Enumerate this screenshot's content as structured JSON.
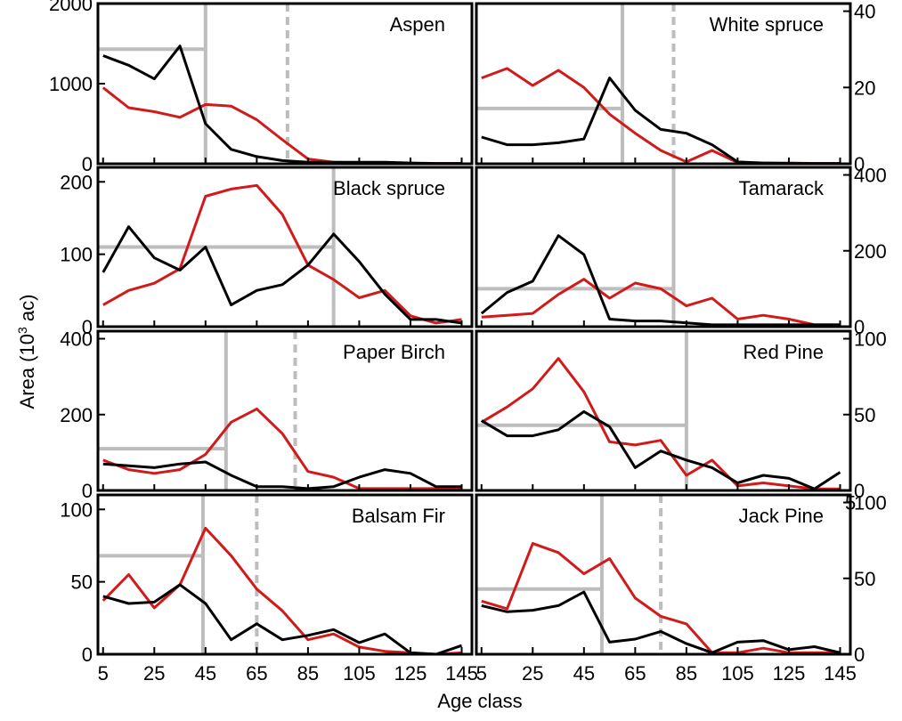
{
  "figure": {
    "ylabel_main": "Area (10",
    "ylabel_sup": "3",
    "ylabel_tail": " ac)",
    "xlabel": "Age class"
  },
  "colors": {
    "series_a": "#d11a1a",
    "series_b": "#000000",
    "reference": "#bdbdbd"
  },
  "chart_data": [
    {
      "type": "line",
      "title": "Aspen",
      "xlim": [
        3,
        149
      ],
      "ylim": [
        0,
        2000
      ],
      "yticks": [
        "0",
        "1000",
        "2000"
      ],
      "reference_lines": {
        "solid_x": 45,
        "dashed_x": 77,
        "horizontal_y": 1430
      },
      "x": [
        5,
        15,
        25,
        35,
        45,
        55,
        65,
        75,
        85,
        95,
        105,
        115,
        125,
        135,
        145
      ],
      "series": [
        {
          "color": "#d11a1a",
          "values": [
            950,
            700,
            650,
            580,
            740,
            720,
            550,
            300,
            60,
            20,
            10,
            10,
            5,
            5,
            5
          ]
        },
        {
          "color": "#000000",
          "values": [
            1350,
            1230,
            1060,
            1470,
            500,
            180,
            90,
            40,
            20,
            20,
            20,
            20,
            10,
            5,
            5
          ]
        }
      ]
    },
    {
      "type": "line",
      "title": "White spruce",
      "xlim": [
        3,
        149
      ],
      "ylim": [
        0,
        42
      ],
      "yticks": [
        "0",
        "20",
        "40"
      ],
      "reference_lines": {
        "solid_x": 60,
        "dashed_x": 80,
        "horizontal_y": 14.5
      },
      "x": [
        5,
        15,
        25,
        35,
        45,
        55,
        65,
        75,
        85,
        95,
        105,
        115,
        125,
        135,
        145
      ],
      "series": [
        {
          "color": "#d11a1a",
          "values": [
            22.5,
            25,
            20.5,
            24.5,
            20,
            13,
            8,
            3.5,
            0.5,
            3.5,
            0.3,
            0.2,
            0.2,
            0.1,
            0.1
          ]
        },
        {
          "color": "#000000",
          "values": [
            7,
            5,
            5,
            5.5,
            6.5,
            22.5,
            14,
            9,
            8,
            5,
            0.5,
            0.2,
            0.1,
            0.1,
            0.1
          ]
        }
      ]
    },
    {
      "type": "line",
      "title": "Black spruce",
      "xlim": [
        3,
        149
      ],
      "ylim": [
        0,
        220
      ],
      "yticks": [
        "0",
        "100",
        "200"
      ],
      "reference_lines": {
        "solid_x": 95,
        "dashed_x": null,
        "horizontal_y": 110
      },
      "x": [
        5,
        15,
        25,
        35,
        45,
        55,
        65,
        75,
        85,
        95,
        105,
        115,
        125,
        135,
        145
      ],
      "series": [
        {
          "color": "#d11a1a",
          "values": [
            30,
            50,
            60,
            80,
            180,
            190,
            195,
            155,
            85,
            65,
            40,
            50,
            15,
            5,
            10
          ]
        },
        {
          "color": "#000000",
          "values": [
            75,
            138,
            95,
            78,
            110,
            30,
            50,
            58,
            85,
            128,
            90,
            45,
            10,
            10,
            5
          ]
        }
      ]
    },
    {
      "type": "line",
      "title": "Tamarack",
      "xlim": [
        3,
        149
      ],
      "ylim": [
        0,
        420
      ],
      "yticks": [
        "0",
        "200",
        "400"
      ],
      "reference_lines": {
        "solid_x": 80,
        "dashed_x": null,
        "horizontal_y": 100
      },
      "x": [
        5,
        15,
        25,
        35,
        45,
        55,
        65,
        75,
        85,
        95,
        105,
        115,
        125,
        135,
        145
      ],
      "series": [
        {
          "color": "#d11a1a",
          "values": [
            25,
            30,
            35,
            85,
            125,
            75,
            115,
            100,
            55,
            75,
            20,
            30,
            20,
            5,
            5
          ]
        },
        {
          "color": "#000000",
          "values": [
            35,
            90,
            120,
            240,
            190,
            20,
            15,
            15,
            10,
            5,
            5,
            5,
            5,
            5,
            5
          ]
        }
      ]
    },
    {
      "type": "line",
      "title": "Paper Birch",
      "xlim": [
        3,
        149
      ],
      "ylim": [
        0,
        420
      ],
      "yticks": [
        "0",
        "200",
        "400"
      ],
      "reference_lines": {
        "solid_x": 53,
        "dashed_x": 80,
        "horizontal_y": 110
      },
      "x": [
        5,
        15,
        25,
        35,
        45,
        55,
        65,
        75,
        85,
        95,
        105,
        115,
        125,
        135,
        145
      ],
      "series": [
        {
          "color": "#d11a1a",
          "values": [
            80,
            55,
            45,
            55,
            95,
            180,
            215,
            150,
            50,
            35,
            5,
            5,
            5,
            5,
            5
          ]
        },
        {
          "color": "#000000",
          "values": [
            70,
            65,
            60,
            70,
            75,
            40,
            10,
            10,
            5,
            10,
            35,
            55,
            45,
            10,
            10
          ]
        }
      ]
    },
    {
      "type": "line",
      "title": "Red Pine",
      "xlim": [
        3,
        149
      ],
      "ylim": [
        0,
        105
      ],
      "yticks": [
        "0",
        "50",
        "100"
      ],
      "reference_lines": {
        "solid_x": 85,
        "dashed_x": null,
        "horizontal_y": 43
      },
      "x": [
        5,
        15,
        25,
        35,
        45,
        55,
        65,
        75,
        85,
        95,
        105,
        115,
        125,
        135,
        145
      ],
      "series": [
        {
          "color": "#d11a1a",
          "values": [
            45,
            55,
            67,
            87,
            65,
            32,
            30,
            33,
            10,
            20,
            3,
            5,
            3,
            1,
            1
          ]
        },
        {
          "color": "#000000",
          "values": [
            46,
            36,
            36,
            40,
            52,
            42,
            15,
            26,
            20,
            15,
            5,
            10,
            8,
            1,
            12
          ]
        }
      ]
    },
    {
      "type": "line",
      "title": "Balsam Fir",
      "xlim": [
        3,
        149
      ],
      "ylim": [
        0,
        110
      ],
      "yticks": [
        "0",
        "50",
        "100"
      ],
      "reference_lines": {
        "solid_x": 44,
        "dashed_x": 65,
        "horizontal_y": 68
      },
      "x": [
        5,
        15,
        25,
        35,
        45,
        55,
        65,
        75,
        85,
        95,
        105,
        115,
        125,
        135,
        145
      ],
      "series": [
        {
          "color": "#d11a1a",
          "values": [
            37,
            55,
            32,
            48,
            87,
            68,
            45,
            30,
            10,
            14,
            5,
            2,
            1,
            0,
            1
          ]
        },
        {
          "color": "#000000",
          "values": [
            40,
            35,
            36,
            48,
            35,
            10,
            21,
            10,
            13,
            17,
            8,
            14,
            1,
            0,
            6
          ]
        }
      ]
    },
    {
      "type": "line",
      "title": "Jack Pine",
      "xlim": [
        3,
        149
      ],
      "ylim": [
        0,
        105
      ],
      "yticks": [
        "0",
        "50",
        "100"
      ],
      "tick_overlap_label": "5",
      "reference_lines": {
        "solid_x": 52,
        "dashed_x": 75,
        "horizontal_y": 43
      },
      "x": [
        5,
        15,
        25,
        35,
        45,
        55,
        65,
        75,
        85,
        95,
        105,
        115,
        125,
        135,
        145
      ],
      "series": [
        {
          "color": "#d11a1a",
          "values": [
            35,
            30,
            73,
            67,
            53,
            63,
            37,
            25,
            20,
            1,
            1,
            4,
            1,
            1,
            1
          ]
        },
        {
          "color": "#000000",
          "values": [
            32,
            28,
            29,
            32,
            41,
            8,
            10,
            15,
            7,
            1,
            8,
            9,
            3,
            5,
            1
          ]
        }
      ]
    }
  ],
  "xaxis_left": {
    "ticks": [
      "5",
      "25",
      "45",
      "65",
      "85",
      "105",
      "125",
      "145"
    ],
    "values": [
      5,
      25,
      45,
      65,
      85,
      105,
      125,
      145
    ]
  },
  "xaxis_right": {
    "ticks": [
      "5",
      "25",
      "45",
      "65",
      "85",
      "105",
      "125",
      "145"
    ],
    "values": [
      5,
      25,
      45,
      65,
      85,
      105,
      125,
      145
    ]
  }
}
